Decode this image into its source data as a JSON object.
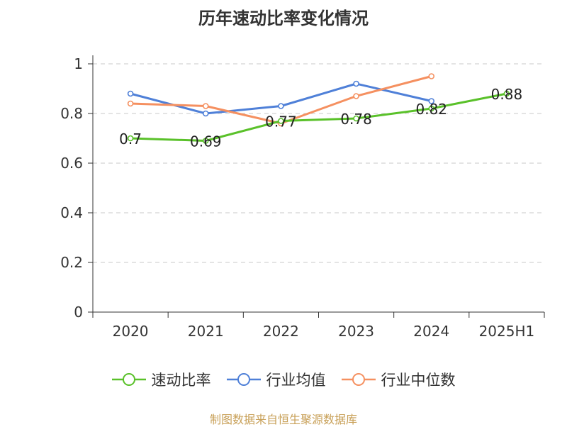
{
  "chart_data": {
    "type": "line",
    "title": "历年速动比率变化情况",
    "categories": [
      "2020",
      "2021",
      "2022",
      "2023",
      "2024",
      "2025H1"
    ],
    "y_ticks": [
      "0",
      "0.2",
      "0.4",
      "0.6",
      "0.8",
      "1"
    ],
    "ylim": [
      0,
      1
    ],
    "grid": true,
    "legend_position": "bottom",
    "series": [
      {
        "name": "速动比率",
        "color": "#5ac12a",
        "values": [
          0.7,
          0.69,
          0.77,
          0.78,
          0.82,
          0.88
        ],
        "labels": [
          "0.7",
          "0.69",
          "0.77",
          "0.78",
          "0.82",
          "0.88"
        ]
      },
      {
        "name": "行业均值",
        "color": "#4f80d8",
        "values": [
          0.88,
          0.8,
          0.83,
          0.92,
          0.85,
          null
        ],
        "labels": null
      },
      {
        "name": "行业中位数",
        "color": "#f59060",
        "values": [
          0.84,
          0.83,
          0.76,
          0.87,
          0.95,
          null
        ],
        "labels": null
      }
    ]
  },
  "source": "制图数据来自恒生聚源数据库"
}
